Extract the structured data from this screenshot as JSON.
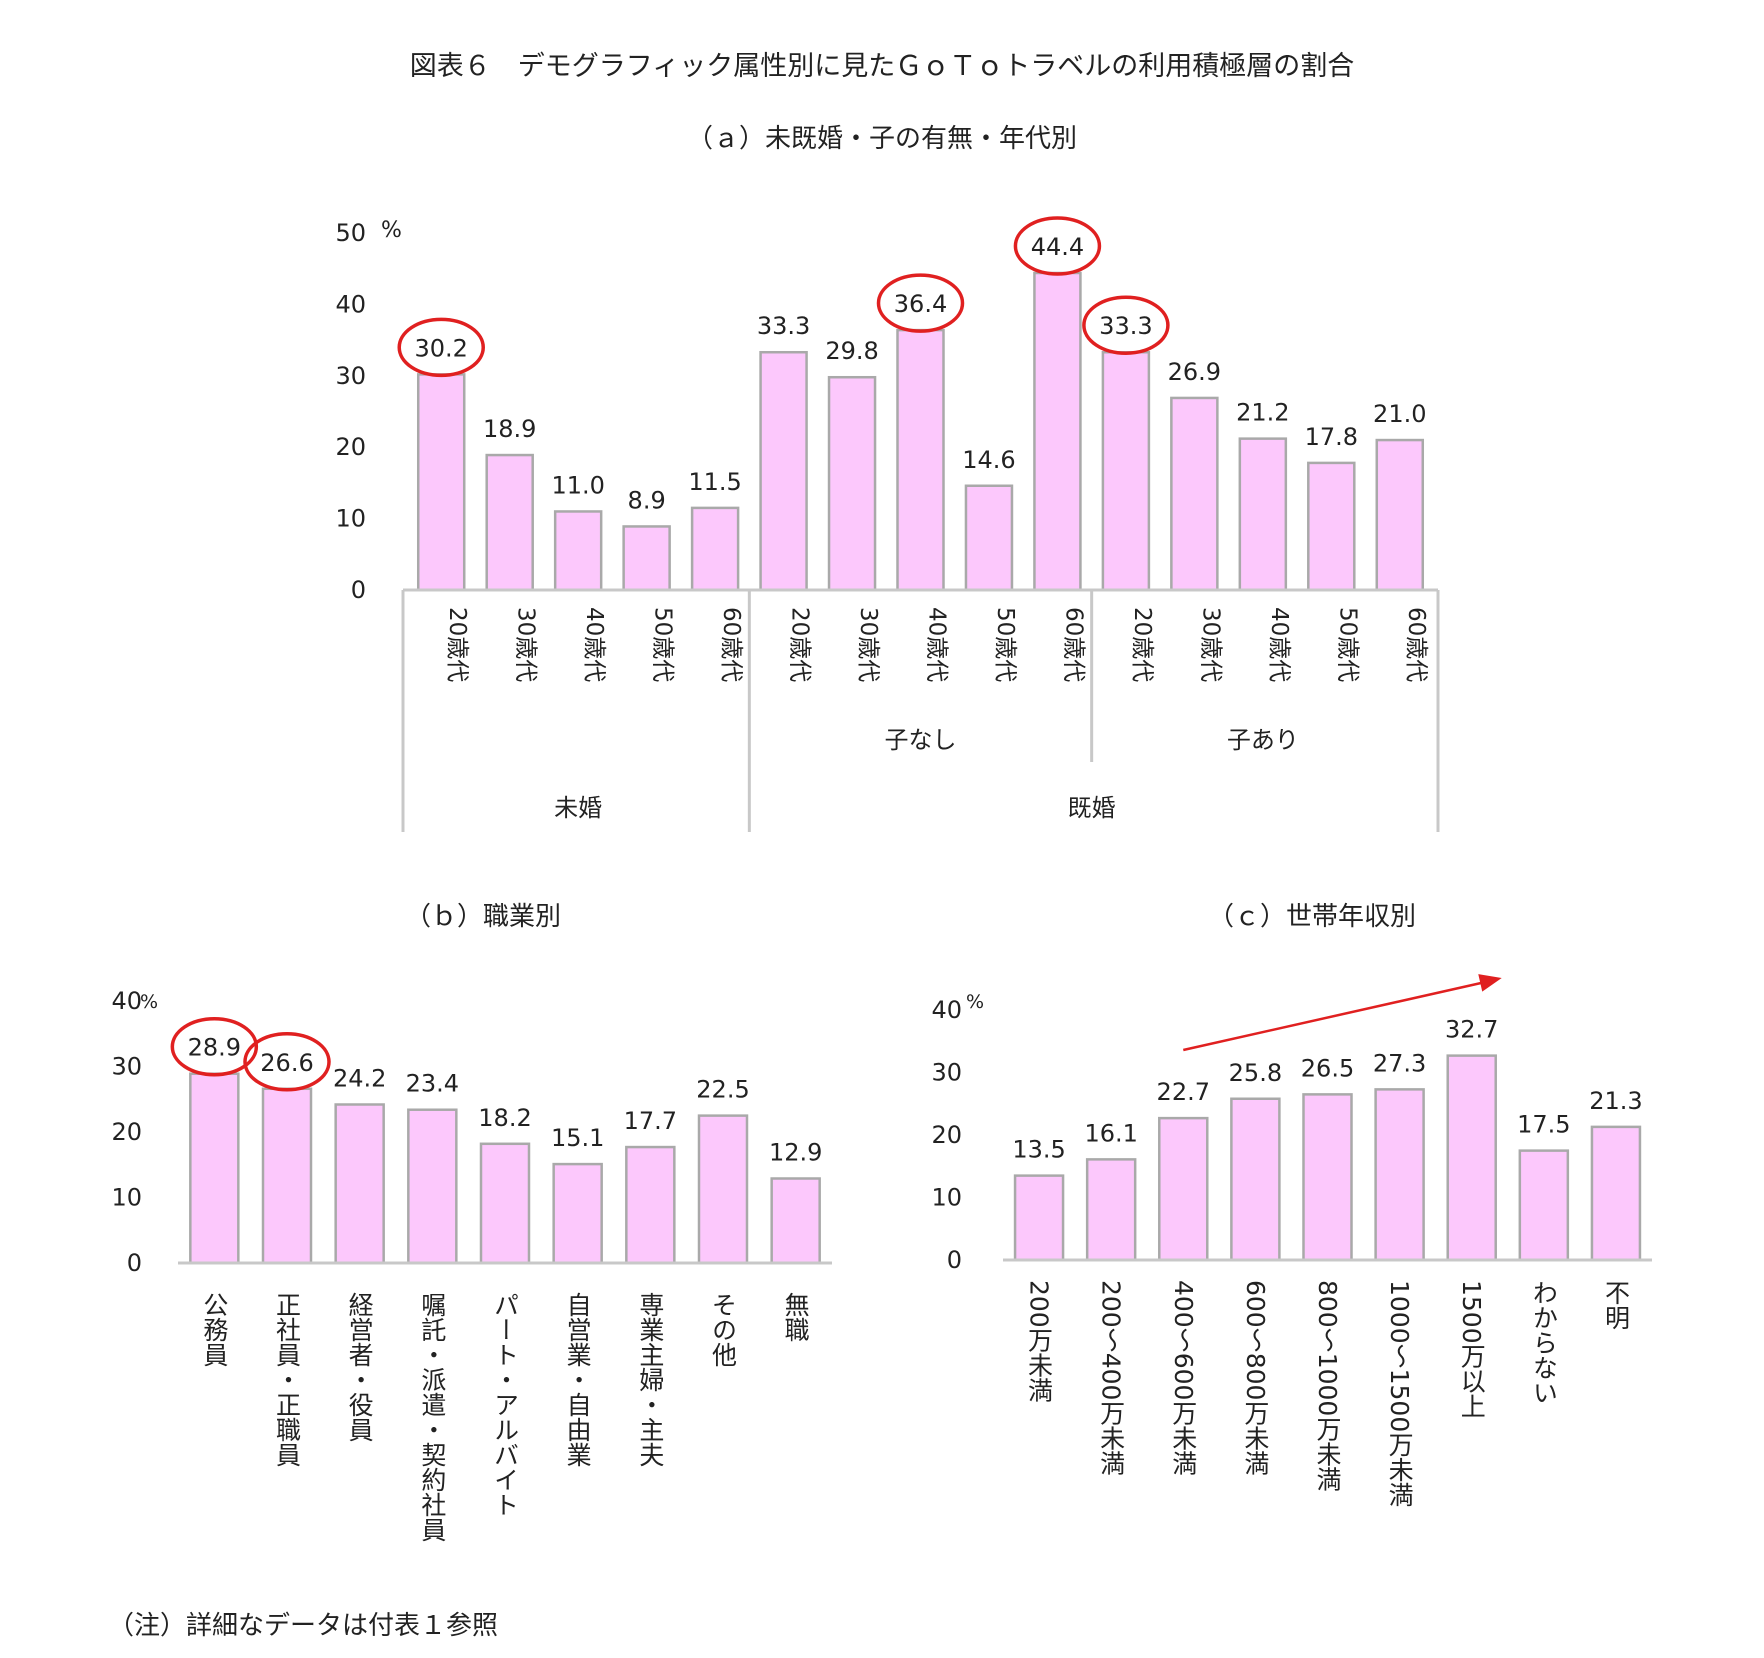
{
  "figure_title": "図表６　デモグラフィック属性別に見たＧｏＴｏトラベルの利用積極層の割合",
  "note": "（注）詳細なデータは付表１参照",
  "colors": {
    "bar_fill": "#fcc8fc",
    "bar_stroke": "#a9a9a9",
    "highlight": "#e02020",
    "axis": "#c8c8c8"
  },
  "chart_data": [
    {
      "type": "bar",
      "subtitle": "（ａ）未既婚・子の有無・年代別",
      "unit": "%",
      "ylim": [
        0,
        50
      ],
      "yticks": [
        "0",
        "10",
        "20",
        "30",
        "40",
        "50"
      ],
      "categories": [
        "20歳代",
        "30歳代",
        "40歳代",
        "50歳代",
        "60歳代",
        "20歳代",
        "30歳代",
        "40歳代",
        "50歳代",
        "60歳代",
        "20歳代",
        "30歳代",
        "40歳代",
        "50歳代",
        "60歳代"
      ],
      "values": [
        30.2,
        18.9,
        11.0,
        8.9,
        11.5,
        33.3,
        29.8,
        36.4,
        14.6,
        44.4,
        33.3,
        26.9,
        21.2,
        17.8,
        21.0
      ],
      "value_labels": [
        "30.2",
        "18.9",
        "11.0",
        "8.9",
        "11.5",
        "33.3",
        "29.8",
        "36.4",
        "14.6",
        "44.4",
        "33.3",
        "26.9",
        "21.2",
        "17.8",
        "21.0"
      ],
      "highlighted": [
        0,
        7,
        9,
        10
      ],
      "groups_level1": [
        {
          "label": "",
          "from": 0,
          "to": 4
        },
        {
          "label": "子なし",
          "from": 5,
          "to": 9
        },
        {
          "label": "子あり",
          "from": 10,
          "to": 14
        }
      ],
      "groups_level2": [
        {
          "label": "未婚",
          "from": 0,
          "to": 4
        },
        {
          "label": "既婚",
          "from": 5,
          "to": 14
        }
      ]
    },
    {
      "type": "bar",
      "subtitle": "（ｂ）職業別",
      "unit": "%",
      "ylim": [
        0,
        40
      ],
      "yticks": [
        "0",
        "10",
        "20",
        "30",
        "40"
      ],
      "categories": [
        "公務員",
        "正社員・正職員",
        "経営者・役員",
        "嘱託・派遣・契約社員",
        "パート・アルバイト",
        "自営業・自由業",
        "専業主婦・主夫",
        "その他",
        "無職"
      ],
      "values": [
        28.9,
        26.6,
        24.2,
        23.4,
        18.2,
        15.1,
        17.7,
        22.5,
        12.9
      ],
      "value_labels": [
        "28.9",
        "26.6",
        "24.2",
        "23.4",
        "18.2",
        "15.1",
        "17.7",
        "22.5",
        "12.9"
      ],
      "highlighted": [
        0,
        1
      ]
    },
    {
      "type": "bar",
      "subtitle": "（ｃ）世帯年収別",
      "unit": "%",
      "ylim": [
        0,
        40
      ],
      "yticks": [
        "0",
        "10",
        "20",
        "30",
        "40"
      ],
      "categories": [
        "200万未満",
        "200～400万未満",
        "400～600万未満",
        "600～800万未満",
        "800～1000万未満",
        "1000～1500万未満",
        "1500万以上",
        "わからない",
        "不明"
      ],
      "values": [
        13.5,
        16.1,
        22.7,
        25.8,
        26.5,
        27.3,
        32.7,
        17.5,
        21.3
      ],
      "value_labels": [
        "13.5",
        "16.1",
        "22.7",
        "25.8",
        "26.5",
        "27.3",
        "32.7",
        "17.5",
        "21.3"
      ],
      "highlighted": [],
      "trend_arrow": {
        "from_index": 2,
        "to_index": 6
      }
    }
  ]
}
